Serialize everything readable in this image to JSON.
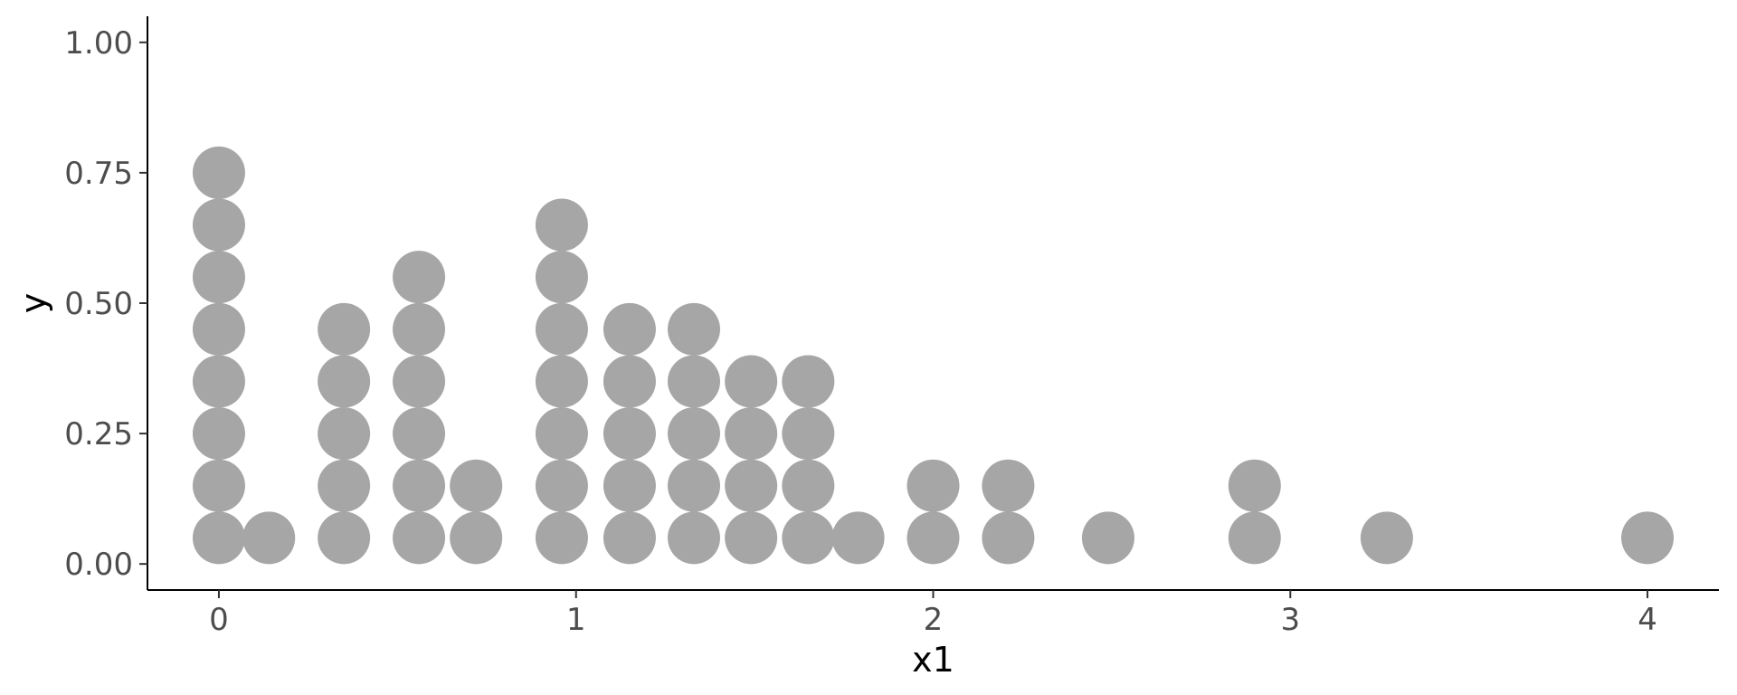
{
  "chart_data": {
    "type": "scatter",
    "subtype": "dotplot",
    "title": "",
    "xlabel": "x1",
    "ylabel": "y",
    "xlim": [
      -0.2,
      4.2
    ],
    "ylim": [
      -0.05,
      1.05
    ],
    "x_ticks": [
      0,
      1,
      2,
      3,
      4
    ],
    "x_tick_labels": [
      "0",
      "1",
      "2",
      "3",
      "4"
    ],
    "y_ticks": [
      0,
      0.25,
      0.5,
      0.75,
      1.0
    ],
    "y_tick_labels": [
      "0.00",
      "0.25",
      "0.50",
      "0.75",
      "1.00"
    ],
    "grid": false,
    "legend": "none",
    "dot_color": "#a6a6a6",
    "axis_color": "#000000",
    "stacks": [
      {
        "x": 0.0,
        "count": 8
      },
      {
        "x": 0.14,
        "count": 1
      },
      {
        "x": 0.35,
        "count": 5
      },
      {
        "x": 0.56,
        "count": 6
      },
      {
        "x": 0.72,
        "count": 2
      },
      {
        "x": 0.96,
        "count": 7
      },
      {
        "x": 1.15,
        "count": 5
      },
      {
        "x": 1.33,
        "count": 5
      },
      {
        "x": 1.49,
        "count": 4
      },
      {
        "x": 1.65,
        "count": 4
      },
      {
        "x": 1.79,
        "count": 1
      },
      {
        "x": 2.0,
        "count": 2
      },
      {
        "x": 2.21,
        "count": 2
      },
      {
        "x": 2.49,
        "count": 1
      },
      {
        "x": 2.9,
        "count": 2
      },
      {
        "x": 3.27,
        "count": 1
      },
      {
        "x": 4.0,
        "count": 1
      }
    ],
    "dot_y_values": [
      0.05,
      0.15,
      0.25,
      0.35,
      0.45,
      0.55,
      0.65,
      0.75
    ]
  }
}
